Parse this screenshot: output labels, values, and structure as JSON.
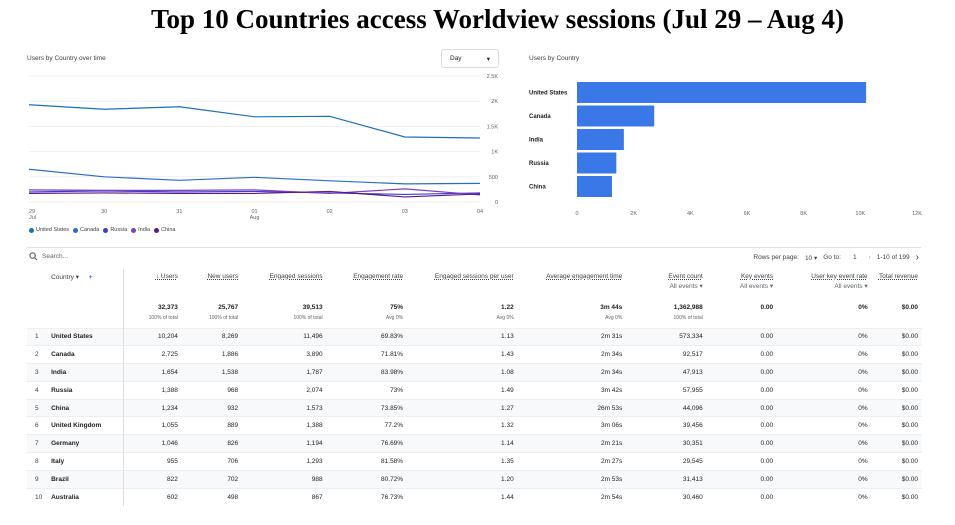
{
  "page_title": "Top 10 Countries access Worldview sessions (Jul 29 – Aug 4)",
  "line_panel": {
    "title": "Users by Country over time",
    "granularity": "Day",
    "y_ticks": [
      "2.5K",
      "2K",
      "1.5K",
      "1K",
      "500",
      "0"
    ],
    "x_ticks": [
      {
        "day": "29",
        "month": "Jul"
      },
      {
        "day": "30",
        "month": ""
      },
      {
        "day": "31",
        "month": ""
      },
      {
        "day": "01",
        "month": "Aug"
      },
      {
        "day": "02",
        "month": ""
      },
      {
        "day": "03",
        "month": ""
      },
      {
        "day": "04",
        "month": ""
      }
    ],
    "legend": [
      {
        "name": "United States",
        "color": "#1f6fb5"
      },
      {
        "name": "Canada",
        "color": "#2b6cc4"
      },
      {
        "name": "Russia",
        "color": "#3b3fc9"
      },
      {
        "name": "India",
        "color": "#7b3fbf"
      },
      {
        "name": "China",
        "color": "#5b1a8a"
      }
    ]
  },
  "bar_panel": {
    "title": "Users by Country",
    "x_ticks": [
      "0",
      "2K",
      "4K",
      "6K",
      "8K",
      "10K",
      "12K"
    ],
    "bar_color": "#3b78e7"
  },
  "chart_data": [
    {
      "type": "line",
      "title": "Users by Country over time",
      "x": [
        "Jul 29",
        "Jul 30",
        "Jul 31",
        "Aug 01",
        "Aug 02",
        "Aug 03",
        "Aug 04"
      ],
      "ylim": [
        0,
        2500
      ],
      "series": [
        {
          "name": "United States",
          "values": [
            1930,
            1840,
            1890,
            1690,
            1700,
            1290,
            1270
          ]
        },
        {
          "name": "Canada",
          "values": [
            650,
            500,
            430,
            490,
            420,
            360,
            370
          ]
        },
        {
          "name": "Russia",
          "values": [
            200,
            220,
            200,
            210,
            180,
            150,
            180
          ]
        },
        {
          "name": "India",
          "values": [
            240,
            230,
            230,
            240,
            170,
            260,
            140
          ]
        },
        {
          "name": "China",
          "values": [
            170,
            180,
            170,
            170,
            210,
            100,
            160
          ]
        }
      ]
    },
    {
      "type": "bar",
      "title": "Users by Country",
      "categories": [
        "United States",
        "Canada",
        "India",
        "Russia",
        "China"
      ],
      "values": [
        10204,
        2725,
        1654,
        1388,
        1234
      ],
      "xlim": [
        0,
        12000
      ]
    }
  ],
  "search": {
    "placeholder": "Search..."
  },
  "pager": {
    "rows_label": "Rows per page:",
    "rows_value": "10",
    "goto_label": "Go to:",
    "goto_value": "1",
    "range": "1-10 of 199"
  },
  "table": {
    "dimension_header": "Country",
    "headers": [
      {
        "label": "↓ Users",
        "sub": ""
      },
      {
        "label": "New users",
        "sub": ""
      },
      {
        "label": "Engaged sessions",
        "sub": ""
      },
      {
        "label": "Engagement rate",
        "sub": ""
      },
      {
        "label": "Engaged sessions per user",
        "sub": ""
      },
      {
        "label": "Average engagement time",
        "sub": ""
      },
      {
        "label": "Event count",
        "sub": "All events ▾"
      },
      {
        "label": "Key events",
        "sub": "All events ▾"
      },
      {
        "label": "User key event rate",
        "sub": "All events ▾"
      },
      {
        "label": "Total revenue",
        "sub": ""
      }
    ],
    "totals": [
      {
        "value": "32,373",
        "sub": "100% of total"
      },
      {
        "value": "25,767",
        "sub": "100% of total"
      },
      {
        "value": "39,513",
        "sub": "100% of total"
      },
      {
        "value": "75%",
        "sub": "Avg 0%"
      },
      {
        "value": "1.22",
        "sub": "Avg 0%"
      },
      {
        "value": "3m 44s",
        "sub": "Avg 0%"
      },
      {
        "value": "1,362,988",
        "sub": "100% of total"
      },
      {
        "value": "0.00",
        "sub": ""
      },
      {
        "value": "0%",
        "sub": ""
      },
      {
        "value": "$0.00",
        "sub": ""
      }
    ],
    "rows": [
      {
        "idx": "1",
        "country": "United States",
        "cells": [
          "10,204",
          "8,269",
          "11,496",
          "69.83%",
          "1.13",
          "2m 31s",
          "573,334",
          "0.00",
          "0%",
          "$0.00"
        ]
      },
      {
        "idx": "2",
        "country": "Canada",
        "cells": [
          "2,725",
          "1,886",
          "3,890",
          "71.81%",
          "1.43",
          "2m 34s",
          "92,517",
          "0.00",
          "0%",
          "$0.00"
        ]
      },
      {
        "idx": "3",
        "country": "India",
        "cells": [
          "1,654",
          "1,538",
          "1,787",
          "83.98%",
          "1.08",
          "2m 34s",
          "47,913",
          "0.00",
          "0%",
          "$0.00"
        ]
      },
      {
        "idx": "4",
        "country": "Russia",
        "cells": [
          "1,388",
          "968",
          "2,074",
          "73%",
          "1.49",
          "3m 42s",
          "57,955",
          "0.00",
          "0%",
          "$0.00"
        ]
      },
      {
        "idx": "5",
        "country": "China",
        "cells": [
          "1,234",
          "932",
          "1,573",
          "73.85%",
          "1.27",
          "26m 53s",
          "44,096",
          "0.00",
          "0%",
          "$0.00"
        ]
      },
      {
        "idx": "6",
        "country": "United Kingdom",
        "cells": [
          "1,055",
          "889",
          "1,388",
          "77.2%",
          "1.32",
          "3m 06s",
          "39,456",
          "0.00",
          "0%",
          "$0.00"
        ]
      },
      {
        "idx": "7",
        "country": "Germany",
        "cells": [
          "1,046",
          "826",
          "1,194",
          "76.69%",
          "1.14",
          "2m 21s",
          "30,351",
          "0.00",
          "0%",
          "$0.00"
        ]
      },
      {
        "idx": "8",
        "country": "Italy",
        "cells": [
          "955",
          "706",
          "1,293",
          "81.58%",
          "1.35",
          "2m 27s",
          "29,545",
          "0.00",
          "0%",
          "$0.00"
        ]
      },
      {
        "idx": "9",
        "country": "Brazil",
        "cells": [
          "822",
          "702",
          "988",
          "80.72%",
          "1.20",
          "2m 53s",
          "31,413",
          "0.00",
          "0%",
          "$0.00"
        ]
      },
      {
        "idx": "10",
        "country": "Australia",
        "cells": [
          "602",
          "498",
          "867",
          "76.73%",
          "1.44",
          "2m 54s",
          "30,460",
          "0.00",
          "0%",
          "$0.00"
        ]
      }
    ]
  }
}
